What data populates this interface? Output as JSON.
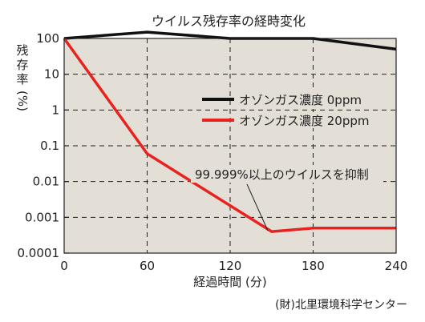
{
  "chart_data": {
    "type": "line",
    "title": "ウイルス残存率の経時変化",
    "ylabel_chars": [
      "残",
      "存",
      "率"
    ],
    "ylabel_unit": "(%)",
    "xlabel": "経過時間 (分)",
    "y_scale": "log",
    "ylim": [
      0.0001,
      100
    ],
    "xlim": [
      0,
      240
    ],
    "x_ticks": [
      "0",
      "60",
      "120",
      "180",
      "240"
    ],
    "y_ticks": [
      "100",
      "10",
      "1",
      "0.1",
      "0.01",
      "0.001",
      "0.0001"
    ],
    "grid": true,
    "legend_position": "top-right",
    "series": [
      {
        "name": "オゾンガス濃度 0ppm",
        "color": "#111111",
        "x": [
          0,
          60,
          120,
          180,
          240
        ],
        "y": [
          100,
          150,
          100,
          100,
          50
        ]
      },
      {
        "name": "オゾンガス濃度 20ppm",
        "color": "#e8231f",
        "x": [
          0,
          60,
          150,
          180,
          240
        ],
        "y": [
          100,
          0.06,
          0.0004,
          0.0005,
          0.0005
        ]
      }
    ],
    "annotation": "99.999%以上のウイルスを抑制",
    "source": "(財)北里環境科学センター"
  },
  "colors": {
    "plot_background": "#e3dfd7",
    "grid": "#222222"
  }
}
